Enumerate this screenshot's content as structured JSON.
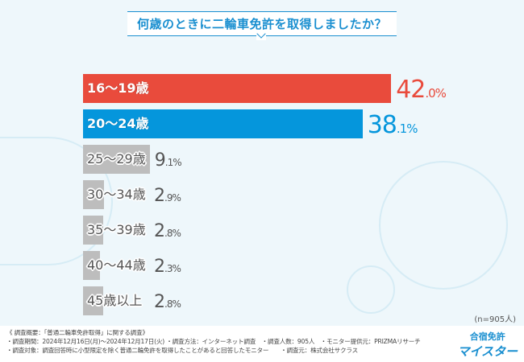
{
  "title": "何歳のときに二輪車免許を取得しましたか？",
  "chart_data": {
    "type": "bar",
    "orientation": "horizontal",
    "title": "何歳のときに二輪車免許を取得しましたか？",
    "categories": [
      "16〜19歳",
      "20〜24歳",
      "25〜29歳",
      "30〜34歳",
      "35〜39歳",
      "40〜44歳",
      "45歳以上"
    ],
    "values": [
      42.0,
      38.1,
      9.1,
      2.9,
      2.8,
      2.3,
      2.8
    ],
    "labels": [
      [
        "42",
        ".0%"
      ],
      [
        "38",
        ".1%"
      ],
      [
        "9",
        ".1%"
      ],
      [
        "2",
        ".9%"
      ],
      [
        "2",
        ".8%"
      ],
      [
        "2",
        ".3%"
      ],
      [
        "2",
        ".8%"
      ]
    ],
    "colors": [
      "#e94b3c",
      "#0596dc",
      "#bdbdbd",
      "#bdbdbd",
      "#bdbdbd",
      "#bdbdbd",
      "#bdbdbd"
    ],
    "label_colors": [
      "#e94b3c",
      "#0596dc",
      "#555555",
      "#555555",
      "#555555",
      "#555555",
      "#555555"
    ],
    "unit": "%",
    "sample": "(n=905人)"
  },
  "footer": {
    "line1": "《 調査概要：「普通二輪車免許取得」に関する調査》",
    "line2": "・調査期間：2024年12月16日(月)〜2024年12月17日(火) ・調査方法：インターネット調査　・調査人数：905人　・モニター提供元：PRIZMAリサーチ",
    "line3": "・調査対象：調査回答時に小型限定を除く普通二輪免許を取得したことがあると回答したモニター　　・調査元：株式会社サクラス"
  },
  "logo": {
    "top": "合宿免許",
    "bottom": "マイスター"
  }
}
